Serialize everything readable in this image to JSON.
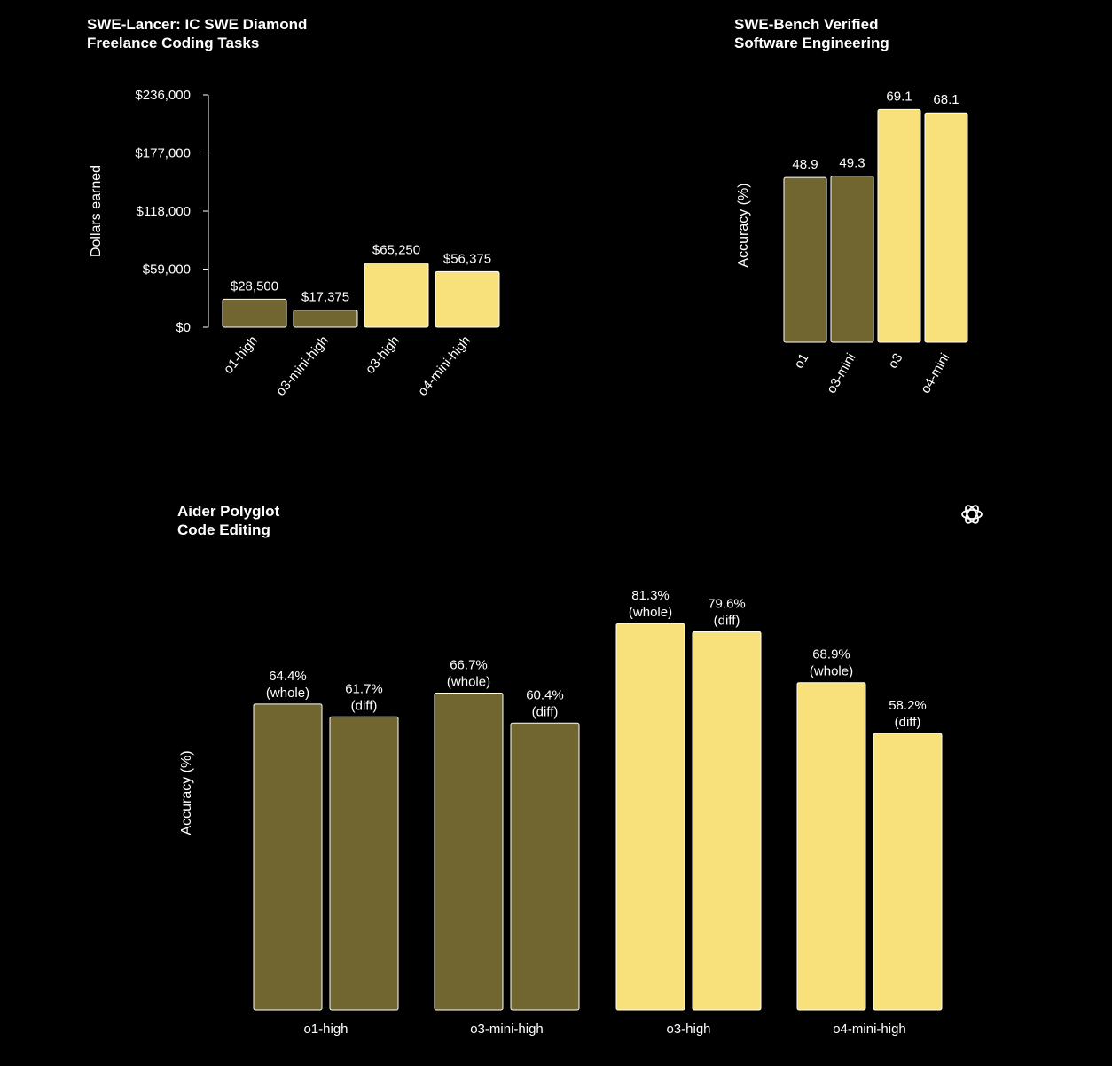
{
  "colors": {
    "background": "#000000",
    "dim_bar": "#726630",
    "bright_bar": "#f8e17a",
    "bar_stroke": "#ffffff",
    "text": "#ffffff"
  },
  "logo_icon": "openai-logo-icon",
  "charts": {
    "lancer": {
      "title_line1": "SWE-Lancer: IC SWE Diamond",
      "title_line2": "Freelance Coding Tasks"
    },
    "bench": {
      "title_line1": "SWE-Bench Verified",
      "title_line2": "Software Engineering"
    },
    "aider": {
      "title_line1": "Aider Polyglot",
      "title_line2": "Code Editing"
    }
  },
  "chart_data": [
    {
      "type": "bar",
      "title": "SWE-Lancer: IC SWE Diamond Freelance Coding Tasks",
      "xlabel": "",
      "ylabel": "Dollars earned",
      "ylim": [
        0,
        236000
      ],
      "yticks": [
        0,
        59000,
        118000,
        177000,
        236000
      ],
      "ytick_labels": [
        "$0",
        "$59,000",
        "$118,000",
        "$177,000",
        "$236,000"
      ],
      "categories": [
        "o1-high",
        "o3-mini-high",
        "o3-high",
        "o4-mini-high"
      ],
      "values": [
        28500,
        17375,
        65250,
        56375
      ],
      "value_labels": [
        "$28,500",
        "$17,375",
        "$65,250",
        "$56,375"
      ],
      "highlight": [
        false,
        false,
        true,
        true
      ],
      "grid": false
    },
    {
      "type": "bar",
      "title": "SWE-Bench Verified Software Engineering",
      "xlabel": "",
      "ylabel": "Accuracy (%)",
      "ylim": [
        0,
        100
      ],
      "categories": [
        "o1",
        "o3-mini",
        "o3",
        "o4-mini"
      ],
      "values": [
        48.9,
        49.3,
        69.1,
        68.1
      ],
      "value_labels": [
        "48.9",
        "49.3",
        "69.1",
        "68.1"
      ],
      "highlight": [
        false,
        false,
        true,
        true
      ],
      "grid": false
    },
    {
      "type": "bar",
      "title": "Aider Polyglot Code Editing",
      "xlabel": "",
      "ylabel": "Accuracy (%)",
      "ylim": [
        0,
        100
      ],
      "categories": [
        "o1-high",
        "o3-mini-high",
        "o3-high",
        "o4-mini-high"
      ],
      "series": [
        {
          "values": [
            64.4,
            66.7,
            81.3,
            68.9
          ],
          "value_labels": [
            "64.4%",
            "66.7%",
            "81.3%",
            "68.9%"
          ],
          "sub_label": "(whole)"
        },
        {
          "values": [
            61.7,
            60.4,
            79.6,
            58.2
          ],
          "value_labels": [
            "61.7%",
            "60.4%",
            "79.6%",
            "58.2%"
          ],
          "sub_label": "(diff)"
        }
      ],
      "highlight": [
        false,
        false,
        true,
        true
      ],
      "grid": false
    }
  ]
}
